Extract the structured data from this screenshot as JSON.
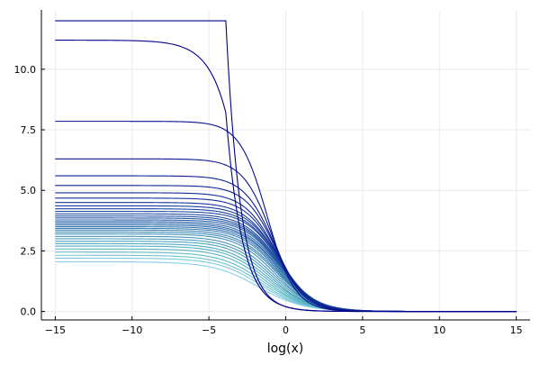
{
  "chart_data": {
    "type": "line",
    "title": "",
    "xlabel": "log(x)",
    "ylabel": "",
    "xlim": [
      -15.9,
      15.9
    ],
    "ylim": [
      -0.35,
      12.45
    ],
    "x_ticks": [
      -15,
      -10,
      -5,
      0,
      5,
      10,
      15
    ],
    "x_tick_labels": [
      "−15",
      "−10",
      "−5",
      "0",
      "5",
      "10",
      "15"
    ],
    "y_ticks": [
      0,
      2.5,
      5,
      7.5,
      10
    ],
    "y_tick_labels": [
      "0.0",
      "2.5",
      "5.0",
      "7.5",
      "10.0"
    ],
    "grid": true,
    "legend": "none",
    "x_domain": [
      -15,
      15
    ],
    "color_dark": "#00008b",
    "color_light": "#87ceeb",
    "series": [
      {
        "plateau": 12.0,
        "knee": -3.9,
        "midpoint": -3.9,
        "width": 0.6,
        "stroke": "#00008b"
      },
      {
        "plateau": 11.2,
        "knee": -3.9,
        "midpoint": -7.0,
        "width": 1.2,
        "stroke": "#00008b"
      },
      {
        "plateau": 7.85,
        "midpoint": -1.2,
        "width": 0.9,
        "stroke": "#05108e"
      },
      {
        "plateau": 6.3,
        "midpoint": -0.9,
        "width": 0.95,
        "stroke": "#081890"
      },
      {
        "plateau": 5.6,
        "midpoint": -0.75,
        "width": 1.0,
        "stroke": "#0a1e92"
      },
      {
        "plateau": 5.2,
        "midpoint": -0.65,
        "width": 1.0,
        "stroke": "#0d2494"
      },
      {
        "plateau": 4.9,
        "midpoint": -0.6,
        "width": 1.05,
        "stroke": "#102a96"
      },
      {
        "plateau": 4.68,
        "midpoint": -0.55,
        "width": 1.05,
        "stroke": "#133098"
      },
      {
        "plateau": 4.5,
        "midpoint": -0.5,
        "width": 1.1,
        "stroke": "#16369a"
      },
      {
        "plateau": 4.36,
        "midpoint": -0.45,
        "width": 1.1,
        "stroke": "#193c9c"
      },
      {
        "plateau": 4.24,
        "midpoint": -0.45,
        "width": 1.1,
        "stroke": "#1c429e"
      },
      {
        "plateau": 4.13,
        "midpoint": -0.4,
        "width": 1.1,
        "stroke": "#1f48a0"
      },
      {
        "plateau": 4.03,
        "midpoint": -0.4,
        "width": 1.15,
        "stroke": "#224ea2"
      },
      {
        "plateau": 3.94,
        "midpoint": -0.4,
        "width": 1.15,
        "stroke": "#2554a4"
      },
      {
        "plateau": 3.86,
        "midpoint": -0.4,
        "width": 1.15,
        "stroke": "#285aa6"
      },
      {
        "plateau": 3.78,
        "midpoint": -0.4,
        "width": 1.15,
        "stroke": "#2b60a8"
      },
      {
        "plateau": 3.71,
        "midpoint": -0.4,
        "width": 1.2,
        "stroke": "#2e66aa"
      },
      {
        "plateau": 3.64,
        "midpoint": -0.45,
        "width": 1.2,
        "stroke": "#316cac"
      },
      {
        "plateau": 3.57,
        "midpoint": -0.45,
        "width": 1.2,
        "stroke": "#3472ae"
      },
      {
        "plateau": 3.5,
        "midpoint": -0.5,
        "width": 1.2,
        "stroke": "#3778b0"
      },
      {
        "plateau": 3.43,
        "midpoint": -0.55,
        "width": 1.2,
        "stroke": "#3a7eb2"
      },
      {
        "plateau": 3.36,
        "midpoint": -0.6,
        "width": 1.25,
        "stroke": "#3d84b4"
      },
      {
        "plateau": 3.28,
        "midpoint": -0.65,
        "width": 1.25,
        "stroke": "#408ab6"
      },
      {
        "plateau": 3.2,
        "midpoint": -0.75,
        "width": 1.25,
        "stroke": "#4390b8"
      },
      {
        "plateau": 3.1,
        "midpoint": -0.85,
        "width": 1.3,
        "stroke": "#4696ba"
      },
      {
        "plateau": 3.0,
        "midpoint": -0.95,
        "width": 1.3,
        "stroke": "#499cbc"
      },
      {
        "plateau": 2.9,
        "midpoint": -1.05,
        "width": 1.3,
        "stroke": "#4ca2be"
      },
      {
        "plateau": 2.8,
        "midpoint": -1.15,
        "width": 1.35,
        "stroke": "#4fa8c0"
      },
      {
        "plateau": 2.7,
        "midpoint": -1.25,
        "width": 1.35,
        "stroke": "#52aec2"
      },
      {
        "plateau": 2.58,
        "midpoint": -1.35,
        "width": 1.35,
        "stroke": "#55b4c4"
      },
      {
        "plateau": 2.45,
        "midpoint": -1.45,
        "width": 1.4,
        "stroke": "#60bac8"
      },
      {
        "plateau": 2.32,
        "midpoint": -1.55,
        "width": 1.4,
        "stroke": "#6ec2d0"
      },
      {
        "plateau": 2.2,
        "midpoint": -1.65,
        "width": 1.4,
        "stroke": "#7ac8dc"
      },
      {
        "plateau": 2.05,
        "midpoint": -1.8,
        "width": 1.45,
        "stroke": "#87ceeb"
      }
    ]
  }
}
